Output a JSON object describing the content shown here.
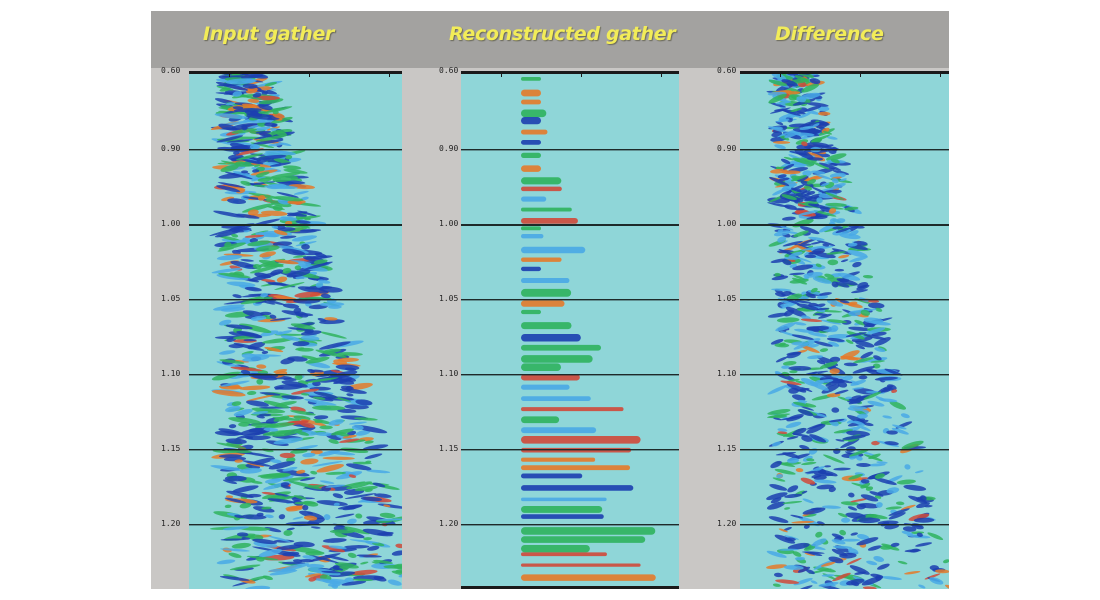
{
  "panels": [
    {
      "id": "input",
      "title": "Input gather",
      "y_ticks": [
        "0.60",
        "0.90",
        "1.00",
        "1.05",
        "1.10",
        "1.15",
        "1.20"
      ]
    },
    {
      "id": "reconstructed",
      "title": "Reconstructed gather",
      "y_ticks": [
        "0.60",
        "0.90",
        "1.00",
        "1.05",
        "1.10",
        "1.15",
        "1.20"
      ]
    },
    {
      "id": "difference",
      "title": "Difference",
      "y_ticks": [
        "0.60",
        "0.90",
        "1.00",
        "1.05",
        "1.10",
        "1.15",
        "1.20"
      ]
    }
  ],
  "colors": {
    "background": "#8fd6d8",
    "header": "#a3a2a0",
    "title_text": "#f2ec58",
    "trough": "#1c3fb0",
    "mid_blue": "#49a9e6",
    "green": "#2fb35e",
    "peak": "#e47a2a",
    "strong_peak": "#d0493a"
  }
}
